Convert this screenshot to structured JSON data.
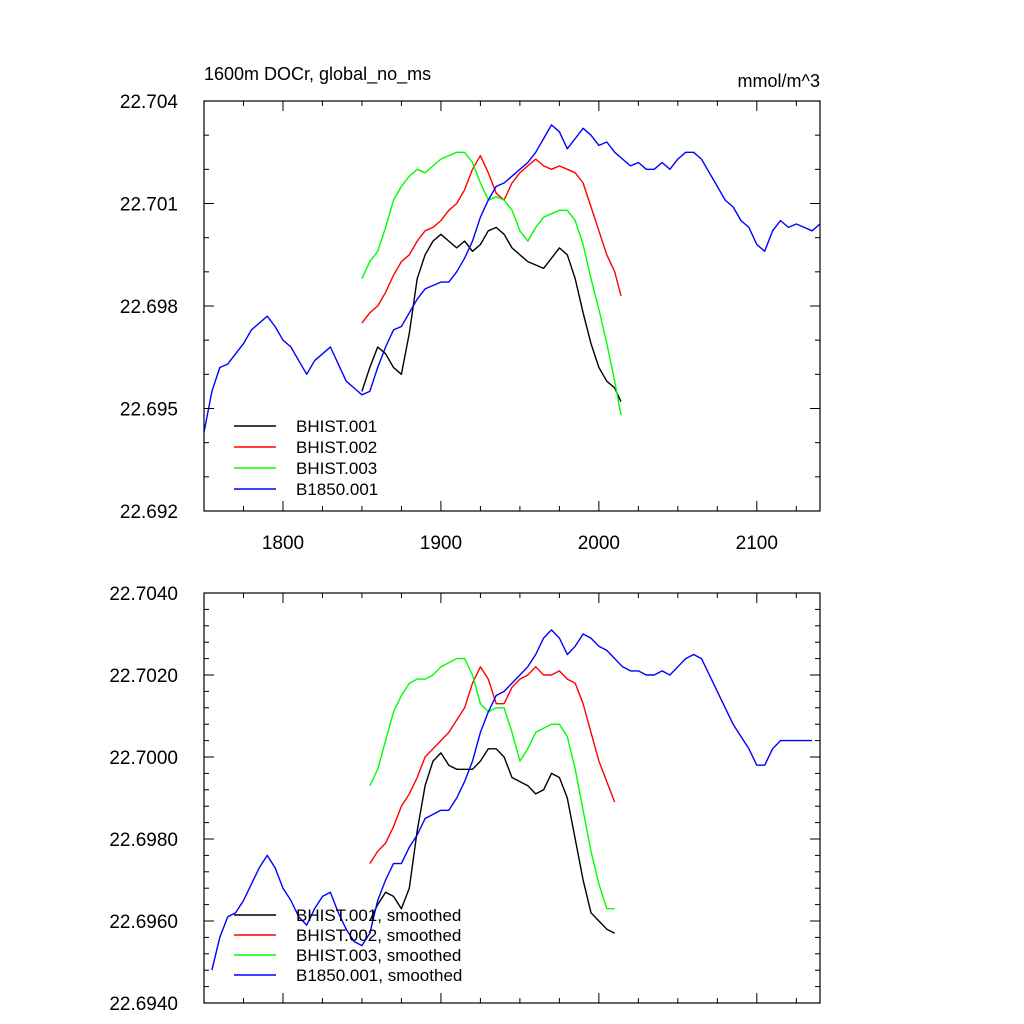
{
  "chart_data": [
    {
      "type": "line",
      "title": "1600m DOCr, global_no_ms",
      "units": "mmol/m^3",
      "xlim": [
        1750,
        2140
      ],
      "ylim": [
        22.692,
        22.704
      ],
      "x_ticks": [
        1800,
        1900,
        2000,
        2100
      ],
      "x_tick_labels": [
        "1800",
        "1900",
        "2000",
        "2100"
      ],
      "y_ticks": [
        22.692,
        22.695,
        22.698,
        22.701,
        22.704
      ],
      "y_tick_labels": [
        "22.692",
        "22.695",
        "22.698",
        "22.701",
        "22.704"
      ],
      "legend_position": "bottom-left",
      "series": [
        {
          "name": "BHIST.001",
          "color": "#000000",
          "x": [
            1850,
            1855,
            1860,
            1865,
            1870,
            1875,
            1880,
            1885,
            1890,
            1895,
            1900,
            1905,
            1910,
            1915,
            1920,
            1925,
            1930,
            1935,
            1940,
            1945,
            1950,
            1955,
            1960,
            1965,
            1970,
            1975,
            1980,
            1985,
            1990,
            1995,
            2000,
            2005,
            2010,
            2014
          ],
          "y": [
            22.6955,
            22.6962,
            22.6968,
            22.6966,
            22.6962,
            22.696,
            22.6972,
            22.6988,
            22.6995,
            22.6999,
            22.7001,
            22.6999,
            22.6997,
            22.6999,
            22.6996,
            22.6998,
            22.7002,
            22.7003,
            22.7001,
            22.6997,
            22.6995,
            22.6993,
            22.6992,
            22.6991,
            22.6994,
            22.6997,
            22.6995,
            22.6988,
            22.6978,
            22.6969,
            22.6962,
            22.6958,
            22.6956,
            22.6952
          ]
        },
        {
          "name": "BHIST.002",
          "color": "#ff0000",
          "x": [
            1850,
            1855,
            1860,
            1865,
            1870,
            1875,
            1880,
            1885,
            1890,
            1895,
            1900,
            1905,
            1910,
            1915,
            1920,
            1925,
            1930,
            1935,
            1940,
            1945,
            1950,
            1955,
            1960,
            1965,
            1970,
            1975,
            1980,
            1985,
            1990,
            1995,
            2000,
            2005,
            2010,
            2014
          ],
          "y": [
            22.6975,
            22.6978,
            22.698,
            22.6984,
            22.6989,
            22.6993,
            22.6995,
            22.6999,
            22.7002,
            22.7003,
            22.7005,
            22.7008,
            22.701,
            22.7014,
            22.702,
            22.7024,
            22.7019,
            22.7013,
            22.7011,
            22.7016,
            22.7019,
            22.7021,
            22.7023,
            22.7021,
            22.702,
            22.7021,
            22.702,
            22.7019,
            22.7016,
            22.7009,
            22.7002,
            22.6995,
            22.699,
            22.6983
          ]
        },
        {
          "name": "BHIST.003",
          "color": "#00ff00",
          "x": [
            1850,
            1855,
            1860,
            1865,
            1870,
            1875,
            1880,
            1885,
            1890,
            1895,
            1900,
            1905,
            1910,
            1915,
            1920,
            1925,
            1930,
            1935,
            1940,
            1945,
            1950,
            1955,
            1960,
            1965,
            1970,
            1975,
            1980,
            1985,
            1990,
            1995,
            2000,
            2005,
            2010,
            2014
          ],
          "y": [
            22.6988,
            22.6993,
            22.6996,
            22.7003,
            22.7011,
            22.7015,
            22.7018,
            22.702,
            22.7019,
            22.7021,
            22.7023,
            22.7024,
            22.7025,
            22.7025,
            22.7022,
            22.7016,
            22.7011,
            22.7012,
            22.7011,
            22.7008,
            22.7002,
            22.6999,
            22.7003,
            22.7006,
            22.7007,
            22.7008,
            22.7008,
            22.7005,
            22.6998,
            22.6988,
            22.6979,
            22.6969,
            22.6958,
            22.6948
          ]
        },
        {
          "name": "B1850.001",
          "color": "#0000ff",
          "x": [
            1750,
            1755,
            1760,
            1765,
            1770,
            1775,
            1780,
            1785,
            1790,
            1795,
            1800,
            1805,
            1810,
            1815,
            1820,
            1825,
            1830,
            1835,
            1840,
            1845,
            1850,
            1855,
            1860,
            1865,
            1870,
            1875,
            1880,
            1885,
            1890,
            1895,
            1900,
            1905,
            1910,
            1915,
            1920,
            1925,
            1930,
            1935,
            1940,
            1945,
            1950,
            1955,
            1960,
            1965,
            1970,
            1975,
            1980,
            1985,
            1990,
            1995,
            2000,
            2005,
            2010,
            2015,
            2020,
            2025,
            2030,
            2035,
            2040,
            2045,
            2050,
            2055,
            2060,
            2065,
            2070,
            2075,
            2080,
            2085,
            2090,
            2095,
            2100,
            2105,
            2110,
            2115,
            2120,
            2125,
            2130,
            2135,
            2140
          ],
          "y": [
            22.6943,
            22.6955,
            22.6962,
            22.6963,
            22.6966,
            22.6969,
            22.6973,
            22.6975,
            22.6977,
            22.6974,
            22.697,
            22.6968,
            22.6964,
            22.696,
            22.6964,
            22.6966,
            22.6968,
            22.6963,
            22.6958,
            22.6956,
            22.6954,
            22.6955,
            22.6962,
            22.6968,
            22.6973,
            22.6974,
            22.6978,
            22.6982,
            22.6985,
            22.6986,
            22.6987,
            22.6987,
            22.699,
            22.6994,
            22.6999,
            22.7006,
            22.7011,
            22.7015,
            22.7016,
            22.7018,
            22.702,
            22.7022,
            22.7025,
            22.7029,
            22.7033,
            22.7031,
            22.7026,
            22.7029,
            22.7032,
            22.703,
            22.7027,
            22.7028,
            22.7025,
            22.7023,
            22.7021,
            22.7022,
            22.702,
            22.702,
            22.7022,
            22.702,
            22.7023,
            22.7025,
            22.7025,
            22.7023,
            22.7019,
            22.7015,
            22.7011,
            22.7009,
            22.7005,
            22.7003,
            22.6998,
            22.6996,
            22.7002,
            22.7005,
            22.7003,
            22.7004,
            22.7003,
            22.7002,
            22.7004
          ]
        }
      ]
    },
    {
      "type": "line",
      "title": "",
      "xlim": [
        1750,
        2140
      ],
      "ylim": [
        22.694,
        22.704
      ],
      "y_ticks": [
        22.694,
        22.696,
        22.698,
        22.7,
        22.702,
        22.704
      ],
      "y_tick_labels": [
        "22.6940",
        "22.6960",
        "22.6980",
        "22.7000",
        "22.7020",
        "22.7040"
      ],
      "legend_position": "bottom-left",
      "series": [
        {
          "name": "BHIST.001, smoothed",
          "color": "#000000",
          "x": [
            1855,
            1860,
            1865,
            1870,
            1875,
            1880,
            1885,
            1890,
            1895,
            1900,
            1905,
            1910,
            1915,
            1920,
            1925,
            1930,
            1935,
            1940,
            1945,
            1950,
            1955,
            1960,
            1965,
            1970,
            1975,
            1980,
            1985,
            1990,
            1995,
            2000,
            2005,
            2010
          ],
          "y": [
            22.696,
            22.6964,
            22.6967,
            22.6966,
            22.6963,
            22.6968,
            22.6982,
            22.6993,
            22.6999,
            22.7001,
            22.6998,
            22.6997,
            22.6997,
            22.6997,
            22.6999,
            22.7002,
            22.7002,
            22.7,
            22.6995,
            22.6994,
            22.6993,
            22.6991,
            22.6992,
            22.6996,
            22.6995,
            22.699,
            22.698,
            22.697,
            22.6962,
            22.696,
            22.6958,
            22.6957
          ]
        },
        {
          "name": "BHIST.002, smoothed",
          "color": "#ff0000",
          "x": [
            1855,
            1860,
            1865,
            1870,
            1875,
            1880,
            1885,
            1890,
            1895,
            1900,
            1905,
            1910,
            1915,
            1920,
            1925,
            1930,
            1935,
            1940,
            1945,
            1950,
            1955,
            1960,
            1965,
            1970,
            1975,
            1980,
            1985,
            1990,
            1995,
            2000,
            2005,
            2010
          ],
          "y": [
            22.6974,
            22.6977,
            22.6979,
            22.6983,
            22.6988,
            22.6991,
            22.6995,
            22.7,
            22.7002,
            22.7004,
            22.7006,
            22.7009,
            22.7012,
            22.7018,
            22.7022,
            22.7019,
            22.7013,
            22.7013,
            22.7017,
            22.7019,
            22.702,
            22.7022,
            22.702,
            22.702,
            22.7021,
            22.7019,
            22.7018,
            22.7013,
            22.7006,
            22.6999,
            22.6994,
            22.6989
          ]
        },
        {
          "name": "BHIST.003, smoothed",
          "color": "#00ff00",
          "x": [
            1855,
            1860,
            1865,
            1870,
            1875,
            1880,
            1885,
            1890,
            1895,
            1900,
            1905,
            1910,
            1915,
            1920,
            1925,
            1930,
            1935,
            1940,
            1945,
            1950,
            1955,
            1960,
            1965,
            1970,
            1975,
            1980,
            1985,
            1990,
            1995,
            2000,
            2005,
            2010
          ],
          "y": [
            22.6993,
            22.6997,
            22.7004,
            22.7011,
            22.7015,
            22.7018,
            22.7019,
            22.7019,
            22.702,
            22.7022,
            22.7023,
            22.7024,
            22.7024,
            22.702,
            22.7013,
            22.7011,
            22.7012,
            22.7012,
            22.7006,
            22.6999,
            22.7002,
            22.7006,
            22.7007,
            22.7008,
            22.7008,
            22.7005,
            22.6997,
            22.6987,
            22.6977,
            22.6969,
            22.6963,
            22.6963
          ]
        },
        {
          "name": "B1850.001, smoothed",
          "color": "#0000ff",
          "x": [
            1755,
            1760,
            1765,
            1770,
            1775,
            1780,
            1785,
            1790,
            1795,
            1800,
            1805,
            1810,
            1815,
            1820,
            1825,
            1830,
            1835,
            1840,
            1845,
            1850,
            1855,
            1860,
            1865,
            1870,
            1875,
            1880,
            1885,
            1890,
            1895,
            1900,
            1905,
            1910,
            1915,
            1920,
            1925,
            1930,
            1935,
            1940,
            1945,
            1950,
            1955,
            1960,
            1965,
            1970,
            1975,
            1980,
            1985,
            1990,
            1995,
            2000,
            2005,
            2010,
            2015,
            2020,
            2025,
            2030,
            2035,
            2040,
            2045,
            2050,
            2055,
            2060,
            2065,
            2070,
            2075,
            2080,
            2085,
            2090,
            2095,
            2100,
            2105,
            2110,
            2115,
            2120,
            2125,
            2130,
            2135
          ],
          "y": [
            22.6948,
            22.6956,
            22.6961,
            22.6962,
            22.6965,
            22.6969,
            22.6973,
            22.6976,
            22.6973,
            22.6968,
            22.6965,
            22.6961,
            22.6959,
            22.6963,
            22.6966,
            22.6967,
            22.6962,
            22.6958,
            22.6955,
            22.6954,
            22.6957,
            22.6965,
            22.697,
            22.6974,
            22.6974,
            22.6978,
            22.6981,
            22.6985,
            22.6986,
            22.6987,
            22.6987,
            22.699,
            22.6994,
            22.6999,
            22.7006,
            22.7011,
            22.7015,
            22.7016,
            22.7018,
            22.702,
            22.7022,
            22.7025,
            22.7029,
            22.7031,
            22.7029,
            22.7025,
            22.7027,
            22.703,
            22.7029,
            22.7027,
            22.7026,
            22.7024,
            22.7022,
            22.7021,
            22.7021,
            22.702,
            22.702,
            22.7021,
            22.702,
            22.7022,
            22.7024,
            22.7025,
            22.7024,
            22.702,
            22.7016,
            22.7012,
            22.7008,
            22.7005,
            22.7002,
            22.6998,
            22.6998,
            22.7002,
            22.7004,
            22.7004,
            22.7004,
            22.7004,
            22.7004
          ]
        }
      ]
    }
  ]
}
